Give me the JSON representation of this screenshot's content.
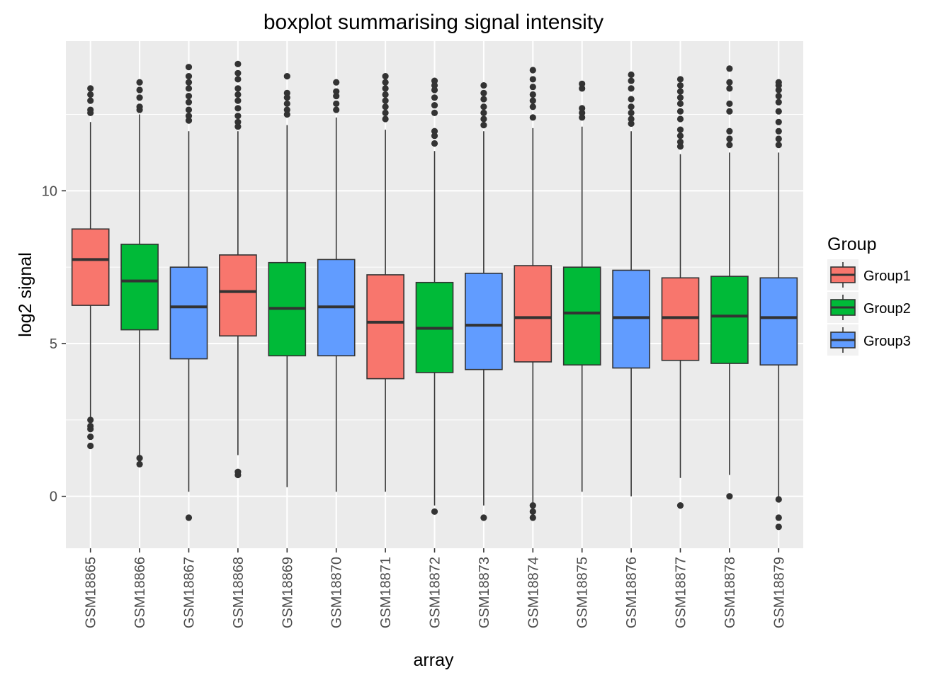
{
  "chart_data": {
    "type": "boxplot",
    "title": "boxplot summarising signal intensity",
    "xlabel": "array",
    "ylabel": "log2 signal",
    "ylim": [
      -1.7,
      14.9
    ],
    "y_ticks": [
      0,
      5,
      10
    ],
    "grid": true,
    "legend": {
      "title": "Group",
      "placement": "right"
    },
    "groups": [
      {
        "name": "Group1",
        "color": "#F8766D"
      },
      {
        "name": "Group2",
        "color": "#00BA38"
      },
      {
        "name": "Group3",
        "color": "#619CFF"
      }
    ],
    "categories": [
      "GSM18865",
      "GSM18866",
      "GSM18867",
      "GSM18868",
      "GSM18869",
      "GSM18870",
      "GSM18871",
      "GSM18872",
      "GSM18873",
      "GSM18874",
      "GSM18875",
      "GSM18876",
      "GSM18877",
      "GSM18878",
      "GSM18879"
    ],
    "boxes": [
      {
        "array": "GSM18865",
        "group": "Group1",
        "whisker_low": 2.6,
        "q1": 6.25,
        "median": 7.75,
        "q3": 8.75,
        "whisker_high": 12.25,
        "outliers": [
          2.5,
          2.3,
          2.2,
          1.95,
          1.65,
          12.55,
          12.65,
          12.95,
          13.15,
          13.35
        ]
      },
      {
        "array": "GSM18866",
        "group": "Group2",
        "whisker_low": 1.35,
        "q1": 5.45,
        "median": 7.05,
        "q3": 8.25,
        "whisker_high": 12.5,
        "outliers": [
          1.05,
          1.25,
          12.65,
          12.75,
          13.05,
          13.3,
          13.55
        ]
      },
      {
        "array": "GSM18867",
        "group": "Group3",
        "whisker_low": 0.15,
        "q1": 4.5,
        "median": 6.2,
        "q3": 7.5,
        "whisker_high": 11.95,
        "outliers": [
          -0.7,
          12.3,
          12.45,
          12.65,
          12.9,
          13.1,
          13.35,
          13.55,
          13.75,
          14.05
        ]
      },
      {
        "array": "GSM18868",
        "group": "Group1",
        "whisker_low": 1.35,
        "q1": 5.25,
        "median": 6.7,
        "q3": 7.9,
        "whisker_high": 11.95,
        "outliers": [
          0.7,
          0.8,
          12.1,
          12.25,
          12.45,
          12.7,
          12.95,
          13.15,
          13.35,
          13.65,
          13.85,
          14.15
        ]
      },
      {
        "array": "GSM18869",
        "group": "Group2",
        "whisker_low": 0.3,
        "q1": 4.6,
        "median": 6.15,
        "q3": 7.65,
        "whisker_high": 12.15,
        "outliers": [
          12.5,
          12.65,
          12.85,
          13.05,
          13.2,
          13.75
        ]
      },
      {
        "array": "GSM18870",
        "group": "Group3",
        "whisker_low": 0.15,
        "q1": 4.6,
        "median": 6.2,
        "q3": 7.75,
        "whisker_high": 12.4,
        "outliers": [
          12.65,
          12.85,
          13.1,
          13.25,
          13.55
        ]
      },
      {
        "array": "GSM18871",
        "group": "Group1",
        "whisker_low": 0.15,
        "q1": 3.85,
        "median": 5.7,
        "q3": 7.25,
        "whisker_high": 12.0,
        "outliers": [
          12.35,
          12.55,
          12.75,
          12.95,
          13.15,
          13.35,
          13.55,
          13.75
        ]
      },
      {
        "array": "GSM18872",
        "group": "Group2",
        "whisker_low": -0.3,
        "q1": 4.05,
        "median": 5.5,
        "q3": 7.0,
        "whisker_high": 11.3,
        "outliers": [
          -0.5,
          11.55,
          11.8,
          11.95,
          12.55,
          12.8,
          13.05,
          13.3,
          13.45,
          13.6
        ]
      },
      {
        "array": "GSM18873",
        "group": "Group3",
        "whisker_low": -0.3,
        "q1": 4.15,
        "median": 5.6,
        "q3": 7.3,
        "whisker_high": 11.95,
        "outliers": [
          -0.7,
          12.15,
          12.35,
          12.55,
          12.75,
          13.0,
          13.2,
          13.45
        ]
      },
      {
        "array": "GSM18874",
        "group": "Group1",
        "whisker_low": -0.2,
        "q1": 4.4,
        "median": 5.85,
        "q3": 7.55,
        "whisker_high": 12.05,
        "outliers": [
          -0.7,
          -0.5,
          -0.3,
          12.4,
          12.75,
          12.95,
          13.15,
          13.4,
          13.65,
          13.95
        ]
      },
      {
        "array": "GSM18875",
        "group": "Group2",
        "whisker_low": 0.15,
        "q1": 4.3,
        "median": 6.0,
        "q3": 7.5,
        "whisker_high": 12.1,
        "outliers": [
          12.4,
          12.55,
          12.7,
          13.35,
          13.5
        ]
      },
      {
        "array": "GSM18876",
        "group": "Group3",
        "whisker_low": 0.0,
        "q1": 4.2,
        "median": 5.85,
        "q3": 7.4,
        "whisker_high": 11.95,
        "outliers": [
          12.2,
          12.35,
          12.55,
          12.75,
          13.0,
          13.35,
          13.6,
          13.8
        ]
      },
      {
        "array": "GSM18877",
        "group": "Group1",
        "whisker_low": 0.6,
        "q1": 4.45,
        "median": 5.85,
        "q3": 7.15,
        "whisker_high": 11.2,
        "outliers": [
          -0.3,
          11.45,
          11.6,
          11.8,
          12.0,
          12.35,
          12.6,
          12.85,
          13.05,
          13.25,
          13.45,
          13.65
        ]
      },
      {
        "array": "GSM18878",
        "group": "Group2",
        "whisker_low": 0.7,
        "q1": 4.35,
        "median": 5.9,
        "q3": 7.2,
        "whisker_high": 11.25,
        "outliers": [
          0.0,
          11.5,
          11.7,
          11.95,
          12.6,
          12.85,
          13.35,
          13.55,
          14.0
        ]
      },
      {
        "array": "GSM18879",
        "group": "Group3",
        "whisker_low": 0.0,
        "q1": 4.3,
        "median": 5.85,
        "q3": 7.15,
        "whisker_high": 11.25,
        "outliers": [
          -1.0,
          -0.7,
          -0.1,
          11.5,
          11.7,
          11.95,
          12.25,
          12.6,
          12.9,
          13.1,
          13.3,
          13.45,
          13.55
        ]
      }
    ]
  }
}
